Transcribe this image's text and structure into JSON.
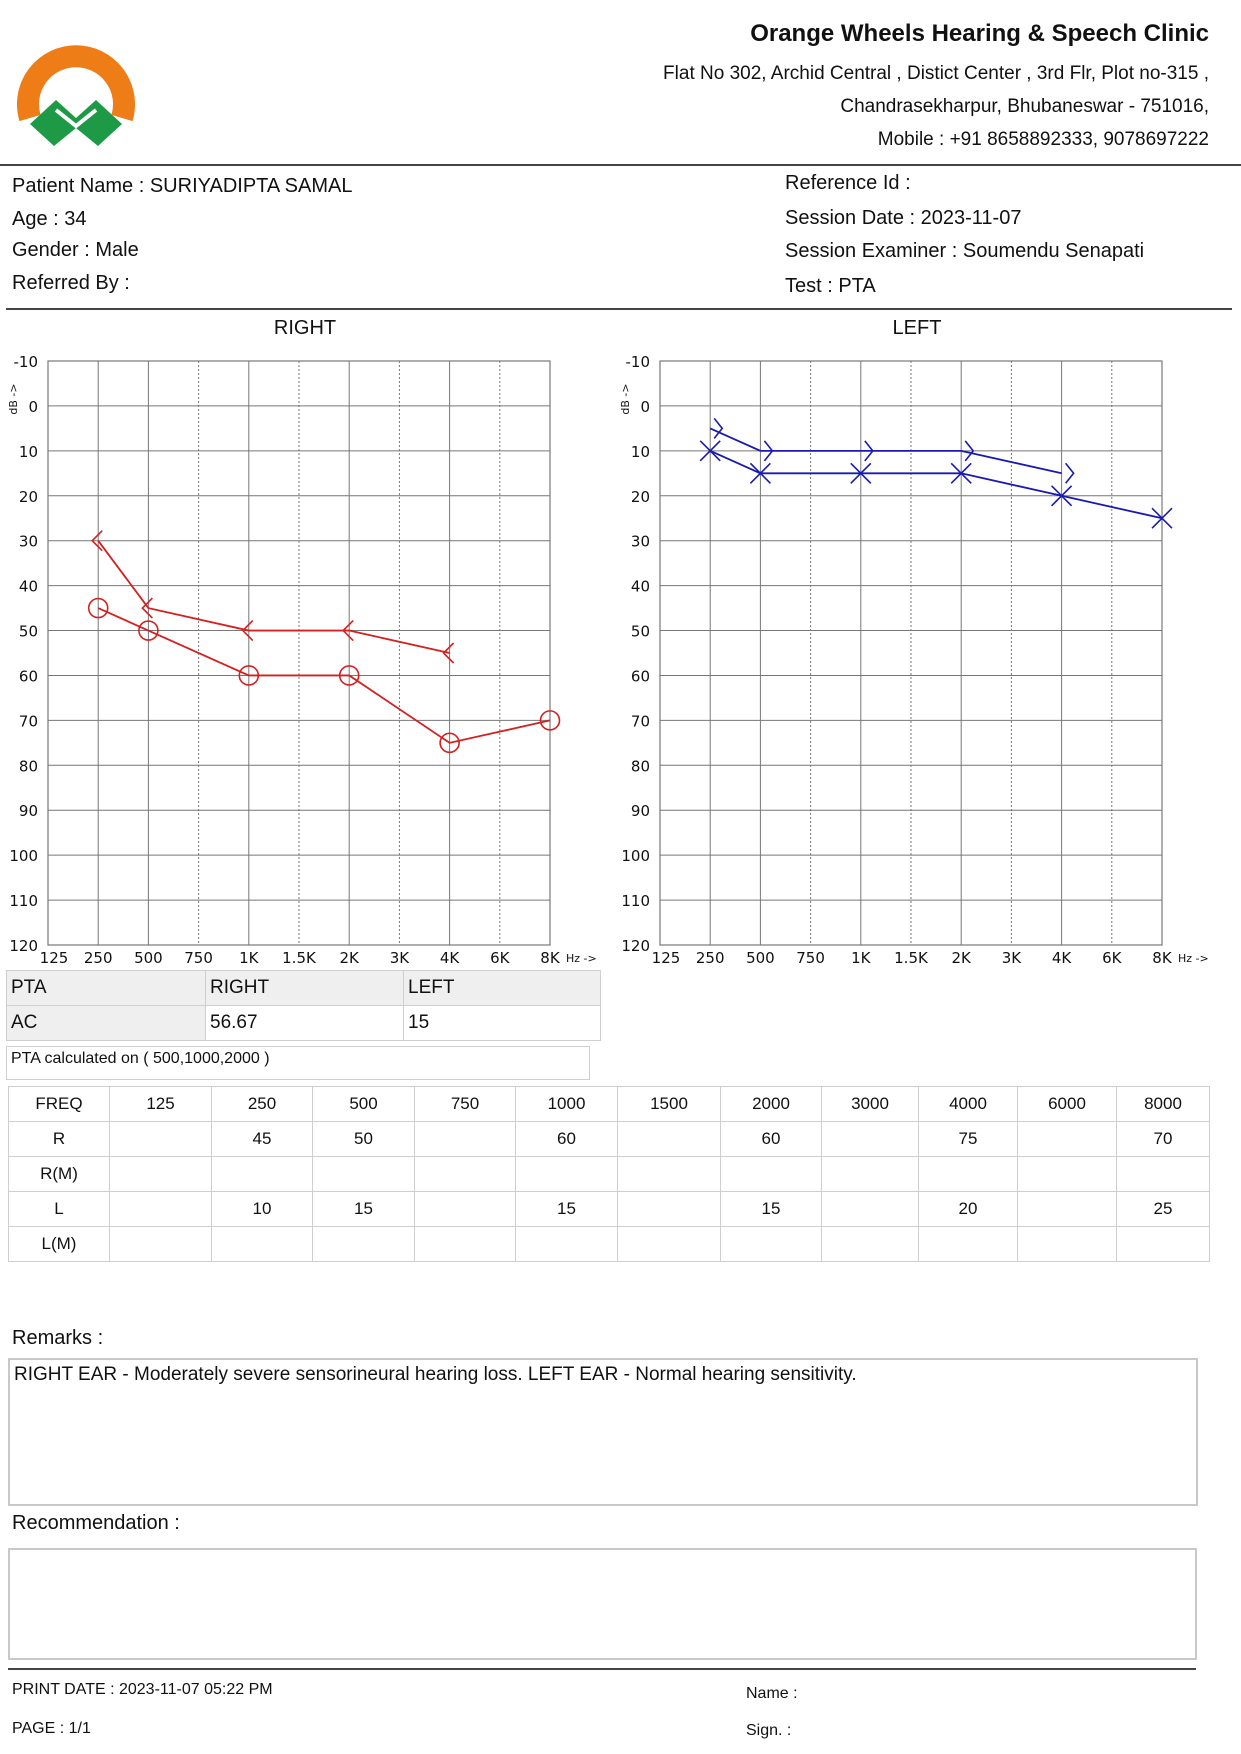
{
  "header": {
    "clinic_name": "Orange Wheels Hearing & Speech Clinic",
    "address_line1": "Flat No 302, Archid Central , Distict Center , 3rd Flr, Plot no-315 ,",
    "address_line2": "Chandrasekharpur, Bhubaneswar - 751016,",
    "mobile": "Mobile : +91 8658892333, 9078697222",
    "logo_colors": {
      "orange": "#ef7d17",
      "green": "#1e9a46"
    }
  },
  "patient": {
    "name": "Patient Name : SURIYADIPTA SAMAL",
    "age": "Age : 34",
    "gender": "Gender : Male",
    "referred_by": "Referred By :",
    "reference_id": "Reference Id :",
    "session_date": "Session Date : 2023-11-07",
    "examiner": "Session Examiner : Soumendu Senapati",
    "test": "Test : PTA"
  },
  "chart_data": [
    {
      "type": "line",
      "title": "RIGHT",
      "ylabel": "dB ->",
      "xlabel": "Hz ->",
      "ylim": [
        -10,
        120
      ],
      "y_inverted": true,
      "yticks": [
        "-10",
        "0",
        "10",
        "20",
        "30",
        "40",
        "50",
        "60",
        "70",
        "80",
        "90",
        "100",
        "110",
        "120"
      ],
      "x_ticks": [
        "125",
        "250",
        "500",
        "750",
        "1K",
        "1.5K",
        "2K",
        "3K",
        "4K",
        "6K",
        "8K"
      ],
      "color": "#d42020",
      "series": [
        {
          "marker": "circle",
          "x": [
            "250",
            "500",
            "1K",
            "2K",
            "4K",
            "8K"
          ],
          "values": [
            45,
            50,
            60,
            60,
            75,
            70
          ]
        },
        {
          "marker": "bracket-left",
          "x": [
            "250",
            "500",
            "1K",
            "2K",
            "4K"
          ],
          "values": [
            30,
            45,
            50,
            50,
            55
          ]
        }
      ]
    },
    {
      "type": "line",
      "title": "LEFT",
      "ylabel": "dB ->",
      "xlabel": "Hz ->",
      "ylim": [
        -10,
        120
      ],
      "y_inverted": true,
      "yticks": [
        "-10",
        "0",
        "10",
        "20",
        "30",
        "40",
        "50",
        "60",
        "70",
        "80",
        "90",
        "100",
        "110",
        "120"
      ],
      "x_ticks": [
        "125",
        "250",
        "500",
        "750",
        "1K",
        "1.5K",
        "2K",
        "3K",
        "4K",
        "6K",
        "8K"
      ],
      "color": "#1a1ab0",
      "series": [
        {
          "marker": "cross",
          "x": [
            "250",
            "500",
            "1K",
            "2K",
            "4K",
            "8K"
          ],
          "values": [
            10,
            15,
            15,
            15,
            20,
            25
          ]
        },
        {
          "marker": "bracket-right",
          "x": [
            "250",
            "500",
            "1K",
            "2K",
            "4K"
          ],
          "values": [
            5,
            10,
            10,
            10,
            15
          ]
        }
      ]
    }
  ],
  "pta": {
    "h1": "PTA",
    "h2": "RIGHT",
    "h3": "LEFT",
    "row_label": "AC",
    "right": "56.67",
    "left": "15",
    "note": "PTA calculated on ( 500,1000,2000 )"
  },
  "freq_table": {
    "header": [
      "FREQ",
      "125",
      "250",
      "500",
      "750",
      "1000",
      "1500",
      "2000",
      "3000",
      "4000",
      "6000",
      "8000"
    ],
    "rows": [
      [
        "R",
        "",
        "45",
        "50",
        "",
        "60",
        "",
        "60",
        "",
        "75",
        "",
        "70"
      ],
      [
        "R(M)",
        "",
        "",
        "",
        "",
        "",
        "",
        "",
        "",
        "",
        "",
        ""
      ],
      [
        "L",
        "",
        "10",
        "15",
        "",
        "15",
        "",
        "15",
        "",
        "20",
        "",
        "25"
      ],
      [
        "L(M)",
        "",
        "",
        "",
        "",
        "",
        "",
        "",
        "",
        "",
        "",
        ""
      ]
    ]
  },
  "remarks": {
    "label": "Remarks :",
    "text": "RIGHT EAR - Moderately severe sensorineural hearing loss. LEFT EAR - Normal hearing sensitivity."
  },
  "recommendation": {
    "label": "Recommendation :",
    "text": ""
  },
  "footer": {
    "print_date": "PRINT DATE : 2023-11-07 05:22 PM",
    "page": "PAGE : 1/1",
    "name": "Name :",
    "sign": "Sign. :"
  }
}
